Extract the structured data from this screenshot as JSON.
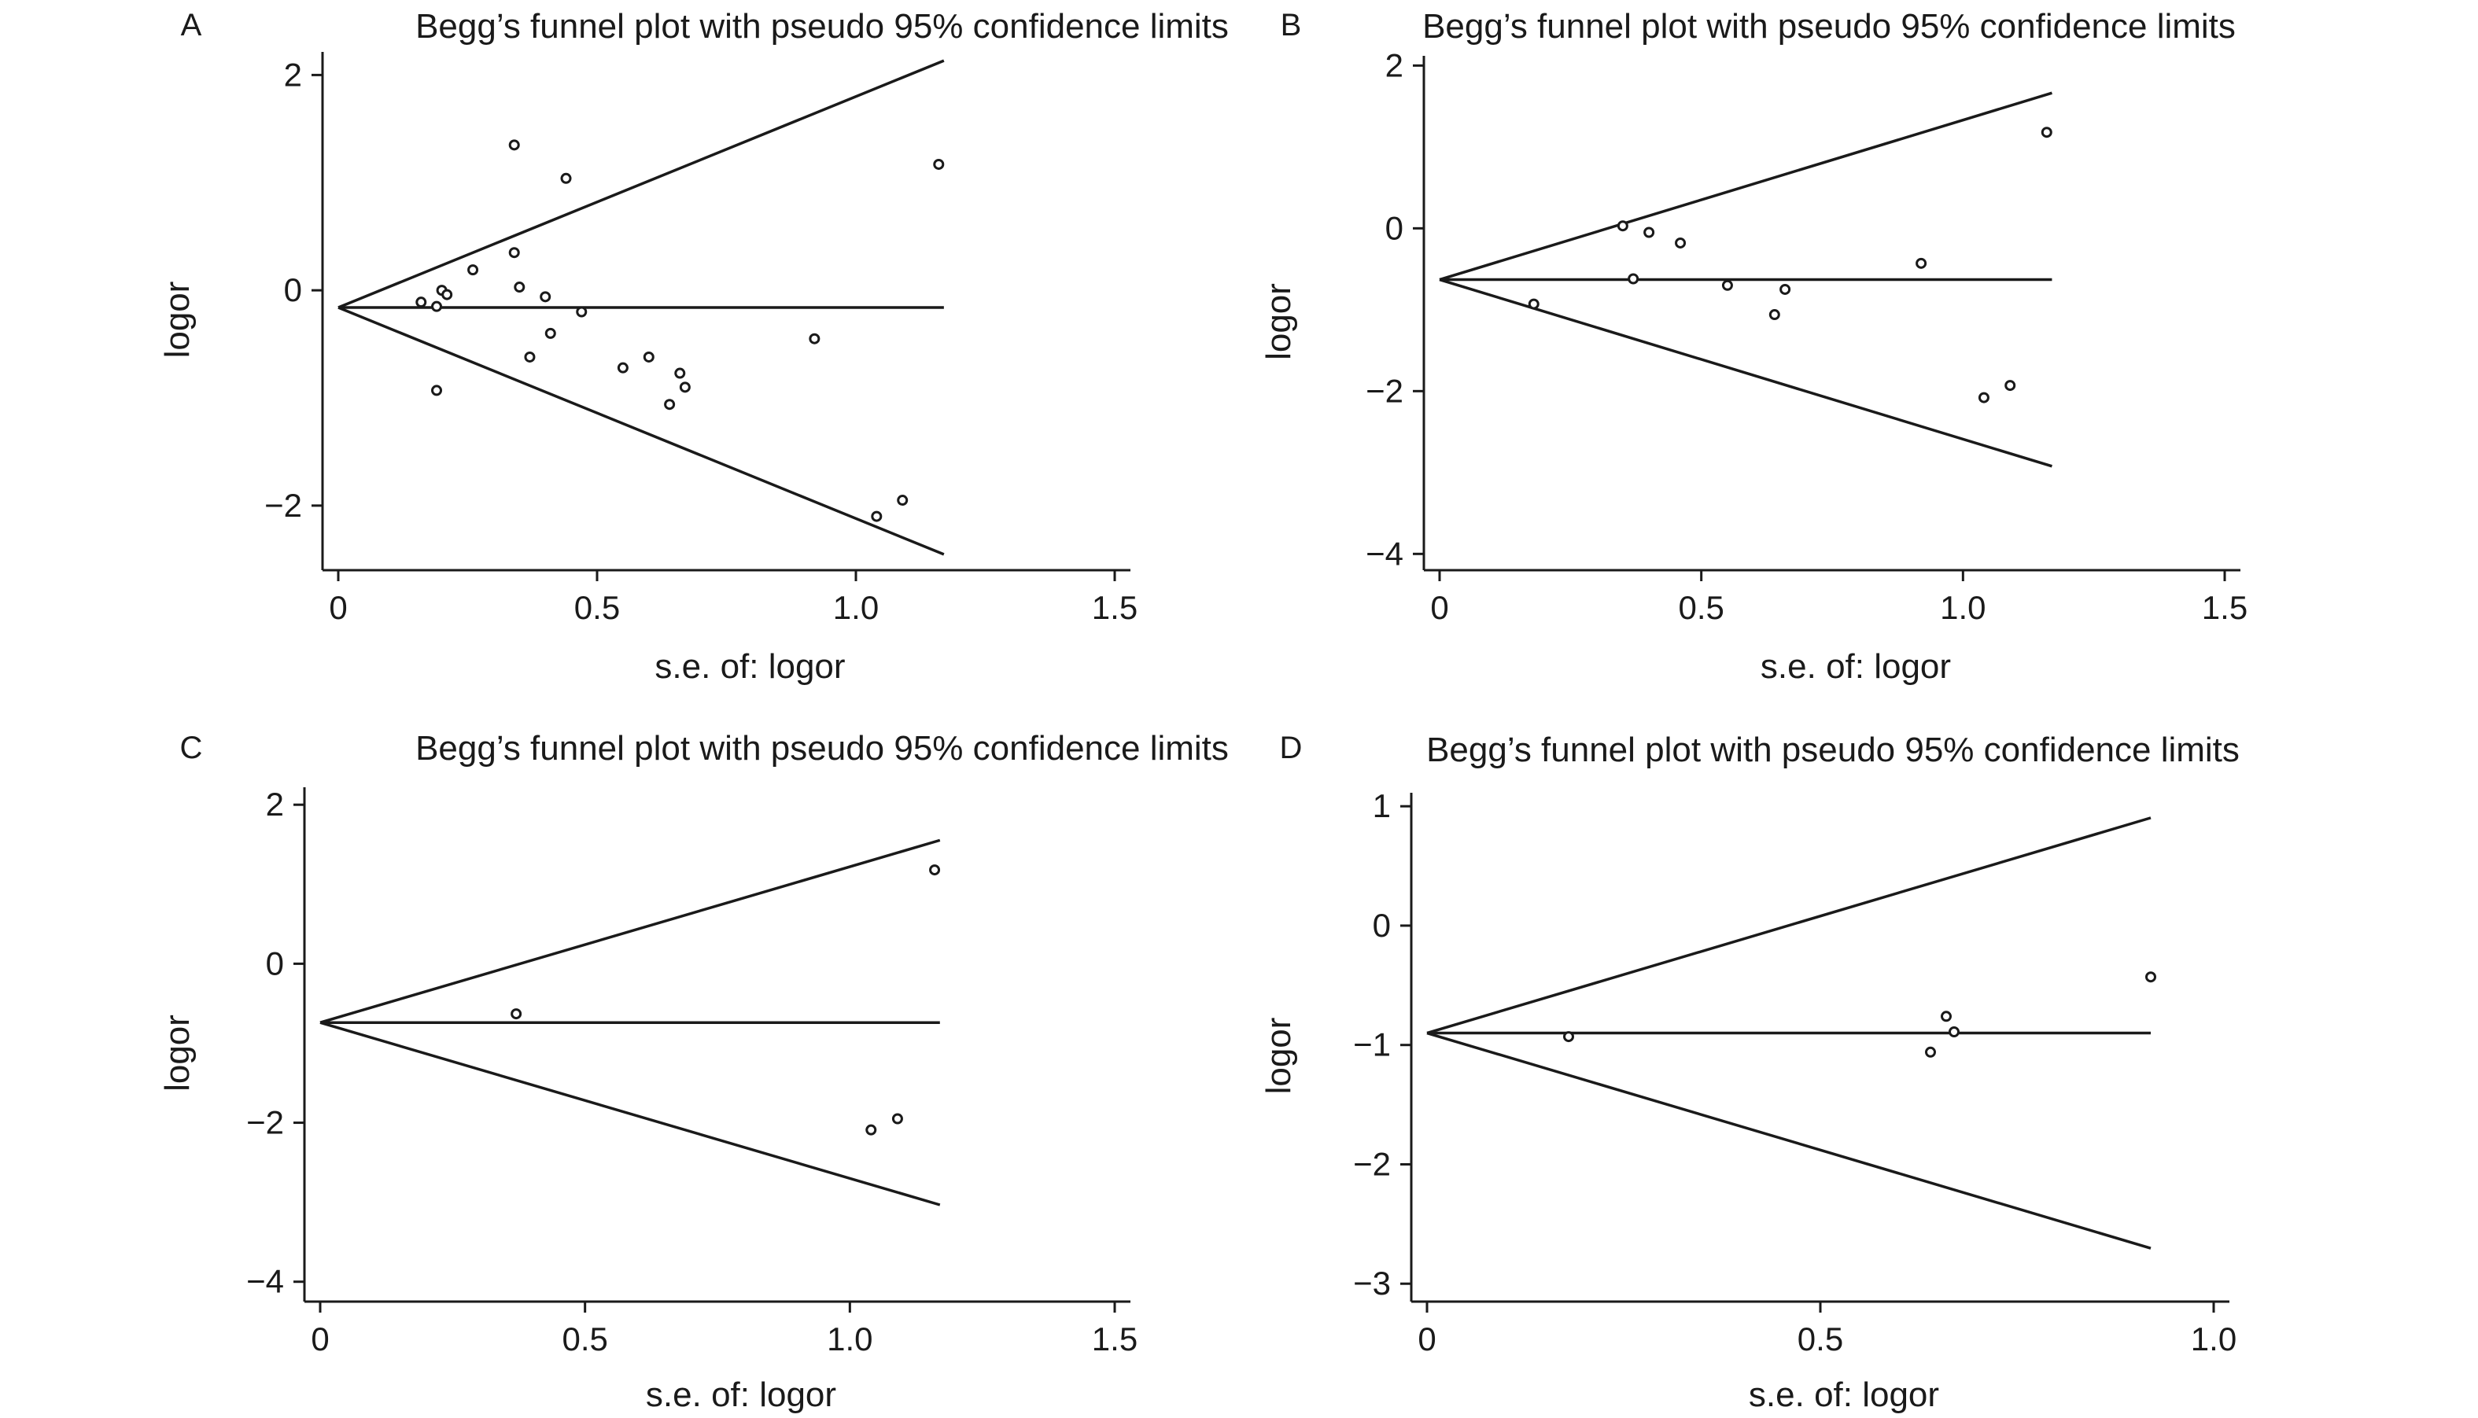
{
  "chart_data": [
    {
      "type": "scatter",
      "panel_label": "A",
      "title": "Begg’s funnel plot with pseudo 95% confidence limits",
      "xlabel": "s.e. of: logor",
      "ylabel": "logor",
      "xlim": [
        0,
        1.5
      ],
      "ylim": [
        -2.6,
        2.2
      ],
      "xticks": [
        0,
        0.5,
        1.0,
        1.5
      ],
      "xtick_labels": [
        "0",
        "0.5",
        "1.0",
        "1.5"
      ],
      "yticks": [
        2,
        0,
        -2
      ],
      "ytick_labels": [
        "2",
        "0",
        "−2"
      ],
      "pooled_logor": -0.16,
      "limits_max_se": 1.17,
      "points": [
        {
          "x": 0.16,
          "y": -0.11
        },
        {
          "x": 0.19,
          "y": -0.15
        },
        {
          "x": 0.19,
          "y": -0.93
        },
        {
          "x": 0.2,
          "y": 0.0
        },
        {
          "x": 0.21,
          "y": -0.04
        },
        {
          "x": 0.26,
          "y": 0.19
        },
        {
          "x": 0.34,
          "y": 0.35
        },
        {
          "x": 0.34,
          "y": 1.35
        },
        {
          "x": 0.35,
          "y": 0.03
        },
        {
          "x": 0.37,
          "y": -0.62
        },
        {
          "x": 0.4,
          "y": -0.06
        },
        {
          "x": 0.41,
          "y": -0.4
        },
        {
          "x": 0.44,
          "y": 1.04
        },
        {
          "x": 0.47,
          "y": -0.2
        },
        {
          "x": 0.55,
          "y": -0.72
        },
        {
          "x": 0.6,
          "y": -0.62
        },
        {
          "x": 0.64,
          "y": -1.06
        },
        {
          "x": 0.66,
          "y": -0.77
        },
        {
          "x": 0.67,
          "y": -0.9
        },
        {
          "x": 0.92,
          "y": -0.45
        },
        {
          "x": 1.04,
          "y": -2.1
        },
        {
          "x": 1.09,
          "y": -1.95
        },
        {
          "x": 1.16,
          "y": 1.17
        }
      ]
    },
    {
      "type": "scatter",
      "panel_label": "B",
      "title": "Begg’s funnel plot with pseudo 95% confidence limits",
      "xlabel": "s.e. of: logor",
      "ylabel": "logor",
      "xlim": [
        0,
        1.5
      ],
      "ylim": [
        -4.2,
        2.1
      ],
      "xticks": [
        0,
        0.5,
        1.0,
        1.5
      ],
      "xtick_labels": [
        "0",
        "0.5",
        "1.0",
        "1.5"
      ],
      "yticks": [
        2,
        0,
        -2,
        -4
      ],
      "ytick_labels": [
        "2",
        "0",
        "−2",
        "−4"
      ],
      "pooled_logor": -0.63,
      "limits_max_se": 1.17,
      "points": [
        {
          "x": 0.18,
          "y": -0.93
        },
        {
          "x": 0.35,
          "y": 0.03
        },
        {
          "x": 0.37,
          "y": -0.62
        },
        {
          "x": 0.4,
          "y": -0.05
        },
        {
          "x": 0.46,
          "y": -0.18
        },
        {
          "x": 0.55,
          "y": -0.7
        },
        {
          "x": 0.64,
          "y": -1.06
        },
        {
          "x": 0.66,
          "y": -0.75
        },
        {
          "x": 0.92,
          "y": -0.43
        },
        {
          "x": 1.04,
          "y": -2.08
        },
        {
          "x": 1.09,
          "y": -1.93
        },
        {
          "x": 1.16,
          "y": 1.18
        }
      ]
    },
    {
      "type": "scatter",
      "panel_label": "C",
      "title": "Begg’s funnel plot with pseudo 95% confidence limits",
      "xlabel": "s.e. of: logor",
      "ylabel": "logor",
      "xlim": [
        0,
        1.5
      ],
      "ylim": [
        -4.25,
        2.2
      ],
      "xticks": [
        0,
        0.5,
        1.0,
        1.5
      ],
      "xtick_labels": [
        "0",
        "0.5",
        "1.0",
        "1.5"
      ],
      "yticks": [
        2,
        0,
        -2,
        -4
      ],
      "ytick_labels": [
        "2",
        "0",
        "−2",
        "−4"
      ],
      "pooled_logor": -0.74,
      "limits_max_se": 1.17,
      "points": [
        {
          "x": 0.37,
          "y": -0.63
        },
        {
          "x": 1.04,
          "y": -2.09
        },
        {
          "x": 1.09,
          "y": -1.95
        },
        {
          "x": 1.16,
          "y": 1.18
        }
      ]
    },
    {
      "type": "scatter",
      "panel_label": "D",
      "title": "Begg’s funnel plot with pseudo 95% confidence limits",
      "xlabel": "s.e. of: logor",
      "ylabel": "logor",
      "xlim": [
        0,
        1.0
      ],
      "ylim": [
        -3.15,
        1.1
      ],
      "xticks": [
        0,
        0.5,
        1.0
      ],
      "xtick_labels": [
        "0",
        "0.5",
        "1.0"
      ],
      "yticks": [
        1,
        0,
        -1,
        -2,
        -3
      ],
      "ytick_labels": [
        "1",
        "0",
        "−1",
        "−2",
        "−3"
      ],
      "pooled_logor": -0.9,
      "limits_max_se": 0.92,
      "points": [
        {
          "x": 0.18,
          "y": -0.93
        },
        {
          "x": 0.64,
          "y": -1.06
        },
        {
          "x": 0.66,
          "y": -0.76
        },
        {
          "x": 0.67,
          "y": -0.89
        },
        {
          "x": 0.92,
          "y": -0.43
        }
      ]
    }
  ]
}
